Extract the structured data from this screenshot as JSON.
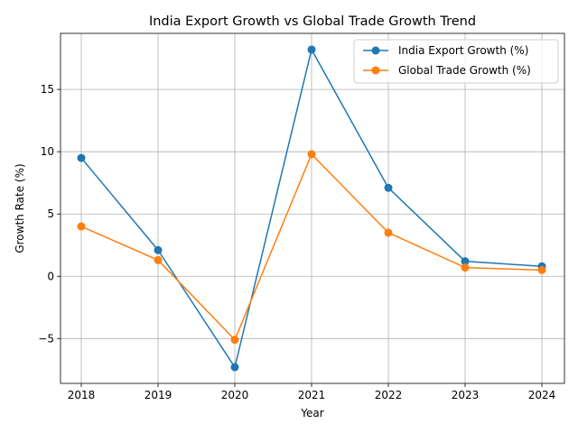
{
  "chart_data": {
    "type": "line",
    "title": "India Export Growth vs Global Trade Growth Trend",
    "xlabel": "Year",
    "ylabel": "Growth Rate (%)",
    "x": [
      "2018",
      "2019",
      "2020",
      "2021",
      "2022",
      "2023",
      "2024"
    ],
    "ylim": [
      -8.6,
      19.5
    ],
    "yticks": [
      -5,
      0,
      5,
      10,
      15
    ],
    "ytick_labels": [
      "−5",
      "0",
      "5",
      "10",
      "15"
    ],
    "grid": true,
    "legend_position": "top-right",
    "series": [
      {
        "name": "India Export Growth (%)",
        "color": "#1f77b4",
        "marker": "circle",
        "values": [
          9.5,
          2.1,
          -7.3,
          18.2,
          7.1,
          1.2,
          0.8
        ]
      },
      {
        "name": "Global Trade Growth (%)",
        "color": "#ff7f0e",
        "marker": "circle",
        "values": [
          4.0,
          1.3,
          -5.1,
          9.8,
          3.5,
          0.7,
          0.5
        ]
      }
    ]
  }
}
